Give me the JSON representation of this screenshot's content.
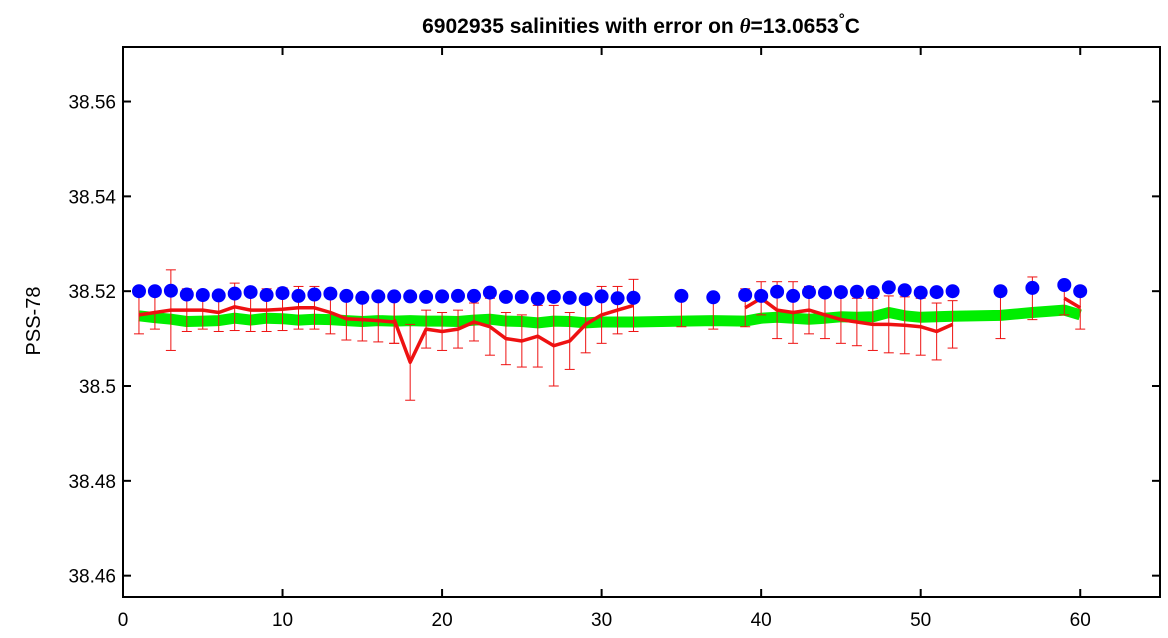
{
  "chart_data": {
    "type": "line",
    "title": {
      "prefix": "6902935 salinities with error on ",
      "symbol": "θ",
      "value": "=13.0653",
      "degree": "°",
      "unit": "C"
    },
    "xlabel": "",
    "ylabel": "PSS-78",
    "xlim": [
      0,
      65
    ],
    "ylim": [
      38.4555,
      38.5715
    ],
    "xticks": [
      0,
      10,
      20,
      30,
      40,
      50,
      60
    ],
    "xtick_labels": [
      "0",
      "10",
      "20",
      "30",
      "40",
      "50",
      "60"
    ],
    "yticks": [
      38.46,
      38.48,
      38.5,
      38.52,
      38.54,
      38.56
    ],
    "ytick_labels": [
      "38.46",
      "38.48",
      "38.5",
      "38.52",
      "38.54",
      "38.56"
    ],
    "grid": false,
    "series": [
      {
        "kind": "line",
        "color": "#00ee00",
        "points": [
          [
            1,
            38.5148
          ],
          [
            2,
            38.5144
          ],
          [
            3,
            38.5141
          ],
          [
            4,
            38.5136
          ],
          [
            5,
            38.5137
          ],
          [
            6,
            38.5138
          ],
          [
            7,
            38.5143
          ],
          [
            8,
            38.5139
          ],
          [
            9,
            38.5143
          ],
          [
            10,
            38.5142
          ],
          [
            11,
            38.5139
          ],
          [
            12,
            38.5141
          ],
          [
            13,
            38.514
          ],
          [
            14,
            38.5138
          ],
          [
            15,
            38.5136
          ],
          [
            16,
            38.5138
          ],
          [
            17,
            38.5137
          ],
          [
            18,
            38.5138
          ],
          [
            19,
            38.5137
          ],
          [
            20,
            38.5137
          ],
          [
            21,
            38.5136
          ],
          [
            22,
            38.5139
          ],
          [
            23,
            38.5141
          ],
          [
            24,
            38.5137
          ],
          [
            25,
            38.5136
          ],
          [
            26,
            38.5133
          ],
          [
            27,
            38.5137
          ],
          [
            28,
            38.5136
          ],
          [
            29,
            38.5133
          ],
          [
            30,
            38.5135
          ],
          [
            31,
            38.5135
          ],
          [
            32,
            38.5135
          ],
          [
            35,
            38.5137
          ],
          [
            37,
            38.5138
          ],
          [
            39,
            38.5137
          ],
          [
            40,
            38.5143
          ],
          [
            41,
            38.5145
          ],
          [
            42,
            38.5143
          ],
          [
            43,
            38.5141
          ],
          [
            44,
            38.5143
          ],
          [
            45,
            38.5146
          ],
          [
            46,
            38.5145
          ],
          [
            47,
            38.5146
          ],
          [
            48,
            38.5155
          ],
          [
            49,
            38.5148
          ],
          [
            50,
            38.5145
          ],
          [
            51,
            38.5146
          ],
          [
            52,
            38.5147
          ],
          [
            55,
            38.5149
          ],
          [
            57,
            38.5155
          ],
          [
            59,
            38.516
          ],
          [
            60,
            38.515
          ]
        ]
      },
      {
        "kind": "line-errorbar",
        "color": "#ee1111",
        "segments": [
          [
            [
              1,
              38.515,
              0.004
            ],
            [
              2,
              38.5155,
              0.0035
            ],
            [
              3,
              38.516,
              0.0085
            ],
            [
              4,
              38.516,
              0.0045
            ],
            [
              5,
              38.516,
              0.004
            ],
            [
              6,
              38.5155,
              0.004
            ],
            [
              7,
              38.5167,
              0.005
            ],
            [
              8,
              38.516,
              0.0045
            ],
            [
              9,
              38.516,
              0.0045
            ],
            [
              10,
              38.5162,
              0.0045
            ],
            [
              11,
              38.5165,
              0.0045
            ],
            [
              12,
              38.5165,
              0.0045
            ],
            [
              13,
              38.5155,
              0.0045
            ],
            [
              14,
              38.5142,
              0.0045
            ],
            [
              15,
              38.514,
              0.0045
            ],
            [
              16,
              38.5138,
              0.0045
            ],
            [
              17,
              38.5135,
              0.0045
            ]
          ],
          [
            [
              17,
              38.514,
              0.005
            ],
            [
              18,
              38.505,
              0.008
            ],
            [
              19,
              38.512,
              0.004
            ],
            [
              20,
              38.5115,
              0.004
            ],
            [
              21,
              38.512,
              0.004
            ],
            [
              22,
              38.5135,
              0.004
            ],
            [
              23,
              38.5125,
              0.006
            ],
            [
              24,
              38.51,
              0.0055
            ],
            [
              25,
              38.5095,
              0.0055
            ],
            [
              26,
              38.5105,
              0.0065
            ],
            [
              27,
              38.5085,
              0.0085
            ],
            [
              28,
              38.5095,
              0.006
            ],
            [
              29,
              38.513,
              0.006
            ],
            [
              30,
              38.515,
              0.006
            ],
            [
              31,
              38.516,
              0.005
            ],
            [
              32,
              38.517,
              0.0055
            ]
          ],
          [
            [
              39,
              38.5165,
              0.004
            ],
            [
              40,
              38.5185,
              0.0035
            ],
            [
              41,
              38.516,
              0.006
            ],
            [
              42,
              38.5155,
              0.0065
            ],
            [
              43,
              38.516,
              0.005
            ],
            [
              44,
              38.515,
              0.005
            ],
            [
              45,
              38.514,
              0.005
            ],
            [
              46,
              38.5135,
              0.005
            ],
            [
              47,
              38.513,
              0.0055
            ],
            [
              48,
              38.513,
              0.006
            ],
            [
              49,
              38.5128,
              0.006
            ],
            [
              50,
              38.5125,
              0.006
            ],
            [
              51,
              38.5115,
              0.006
            ],
            [
              52,
              38.513,
              0.005
            ]
          ],
          [
            [
              59,
              38.5185,
              0.0035
            ],
            [
              60,
              38.5165,
              0.0045
            ]
          ]
        ],
        "isolated": [
          [
            35,
            38.516,
            0.0035
          ],
          [
            37,
            38.5155,
            0.0035
          ],
          [
            55,
            38.5145,
            0.0045
          ],
          [
            57,
            38.5185,
            0.0045
          ]
        ]
      },
      {
        "kind": "scatter",
        "color": "#0000ff",
        "points": [
          [
            1,
            38.52
          ],
          [
            2,
            38.52
          ],
          [
            3,
            38.5201
          ],
          [
            4,
            38.5193
          ],
          [
            5,
            38.5192
          ],
          [
            6,
            38.5191
          ],
          [
            7,
            38.5195
          ],
          [
            8,
            38.5198
          ],
          [
            9,
            38.5192
          ],
          [
            10,
            38.5196
          ],
          [
            11,
            38.519
          ],
          [
            12,
            38.5193
          ],
          [
            13,
            38.5195
          ],
          [
            14,
            38.519
          ],
          [
            15,
            38.5186
          ],
          [
            16,
            38.5189
          ],
          [
            17,
            38.5189
          ],
          [
            18,
            38.5189
          ],
          [
            19,
            38.5188
          ],
          [
            20,
            38.5189
          ],
          [
            21,
            38.519
          ],
          [
            22,
            38.519
          ],
          [
            23,
            38.5197
          ],
          [
            24,
            38.5188
          ],
          [
            25,
            38.5188
          ],
          [
            26,
            38.5184
          ],
          [
            27,
            38.5188
          ],
          [
            28,
            38.5186
          ],
          [
            29,
            38.5183
          ],
          [
            30,
            38.5189
          ],
          [
            31,
            38.5185
          ],
          [
            32,
            38.5186
          ],
          [
            35,
            38.519
          ],
          [
            37,
            38.5187
          ],
          [
            39,
            38.5192
          ],
          [
            40,
            38.519
          ],
          [
            41,
            38.5199
          ],
          [
            42,
            38.519
          ],
          [
            43,
            38.5198
          ],
          [
            44,
            38.5197
          ],
          [
            45,
            38.5198
          ],
          [
            46,
            38.5199
          ],
          [
            47,
            38.5198
          ],
          [
            48,
            38.5208
          ],
          [
            49,
            38.5202
          ],
          [
            50,
            38.5197
          ],
          [
            51,
            38.5198
          ],
          [
            52,
            38.52
          ],
          [
            55,
            38.52
          ],
          [
            57,
            38.5207
          ],
          [
            59,
            38.5213
          ],
          [
            60,
            38.52
          ]
        ]
      }
    ]
  }
}
